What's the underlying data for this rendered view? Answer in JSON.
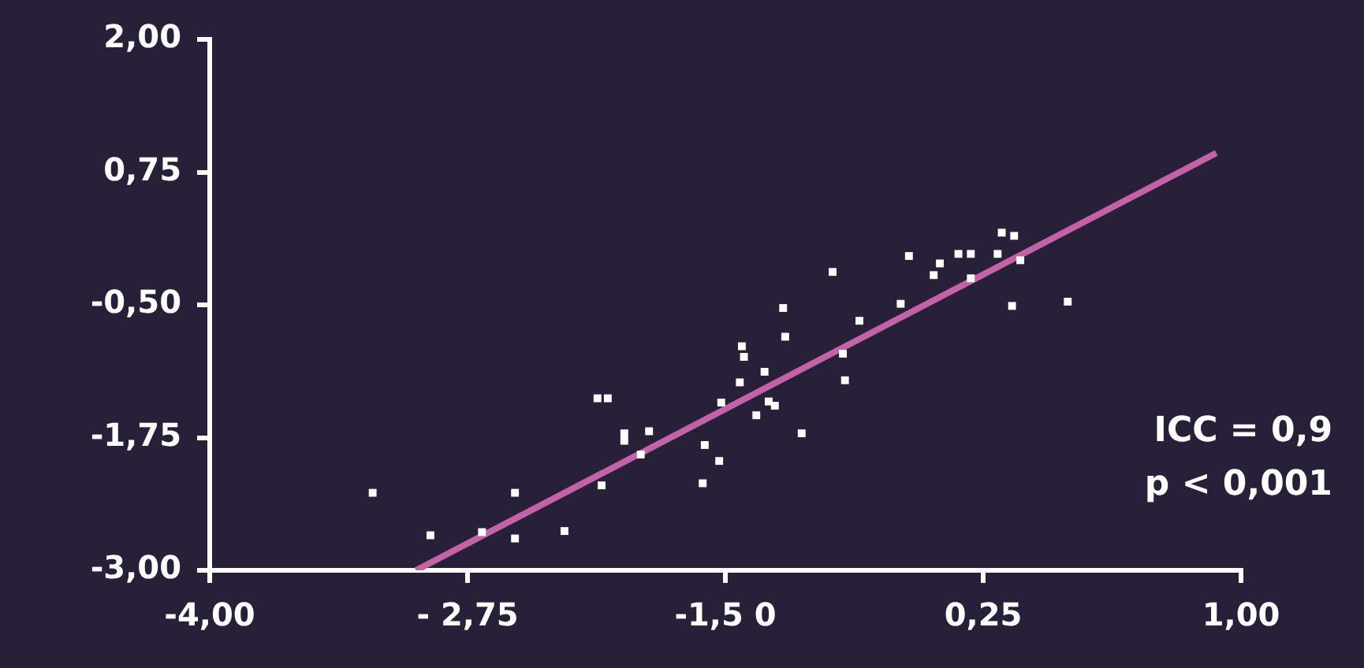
{
  "chart_data": {
    "type": "scatter",
    "marker": "square",
    "grid": false,
    "legend": false,
    "xlim": [
      -4,
      1
    ],
    "xticks": [
      {
        "value": -4,
        "label": "-4,00"
      },
      {
        "value": -2.75,
        "label": "- 2,75"
      },
      {
        "value": -1.5,
        "label": "-1,5 0"
      },
      {
        "value": -0.25,
        "label": "0,25"
      },
      {
        "value": 1,
        "label": "1,00"
      }
    ],
    "ylim": [
      -3,
      2
    ],
    "yticks": [
      {
        "value": -3,
        "label": "-3,00"
      },
      {
        "value": -1.75,
        "label": "-1,75"
      },
      {
        "value": -0.5,
        "label": "-0,50"
      },
      {
        "value": 0.75,
        "label": "0,75"
      },
      {
        "value": 2,
        "label": "2,00"
      }
    ],
    "series": [
      {
        "type": "scatter",
        "color": "#ffffff",
        "x": [
          -3.21,
          -2.93,
          -2.68,
          -2.52,
          -2.52,
          -2.28,
          -2.12,
          -2.07,
          -1.99,
          -1.99,
          -1.87,
          -1.91,
          -2.1,
          -1.52,
          -1.6,
          -1.53,
          -1.61,
          -1.42,
          -1.43,
          -1.41,
          -1.31,
          -1.29,
          -1.26,
          -1.35,
          -1.13,
          -1.22,
          -1.21,
          -0.98,
          -0.85,
          -0.93,
          -0.92,
          -0.65,
          -0.61,
          -0.49,
          -0.46,
          -0.37,
          -0.31,
          -0.31,
          -0.18,
          -0.16,
          -0.1,
          -0.07,
          -0.11,
          0.16
        ],
        "values": [
          -2.27,
          -2.67,
          -2.64,
          -2.27,
          -2.7,
          -2.63,
          -1.38,
          -1.38,
          -1.71,
          -1.78,
          -1.69,
          -1.91,
          -2.2,
          -1.42,
          -1.82,
          -1.97,
          -2.18,
          -0.89,
          -1.23,
          -0.99,
          -1.13,
          -1.41,
          -1.45,
          -1.54,
          -1.71,
          -0.53,
          -0.8,
          -0.19,
          -0.65,
          -0.96,
          -1.21,
          -0.49,
          -0.04,
          -0.22,
          -0.11,
          -0.02,
          -0.02,
          -0.25,
          -0.02,
          0.18,
          0.15,
          -0.08,
          -0.51,
          -0.47
        ]
      },
      {
        "type": "line",
        "color": "#c462a8",
        "marker": "none",
        "line_style": "solid",
        "x": [
          -3.0,
          0.88
        ],
        "values": [
          -3.0,
          0.93
        ]
      }
    ],
    "annotations": [
      "ICC = 0,9",
      "p < 0,001"
    ]
  }
}
